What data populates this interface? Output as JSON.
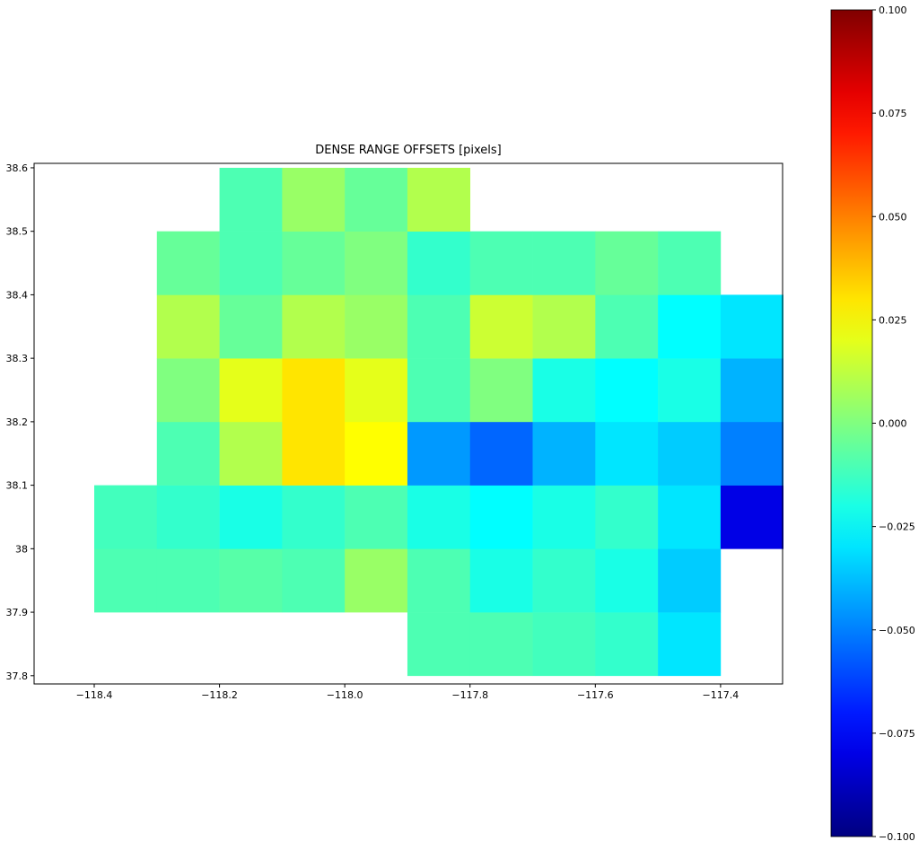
{
  "chart_data": {
    "type": "heatmap",
    "title": "DENSE RANGE OFFSETS [pixels]",
    "colormap": "jet",
    "xlim": [
      -118.496,
      -117.301
    ],
    "ylim": [
      37.787,
      38.607
    ],
    "xticks": [
      {
        "value": -118.4,
        "label": "−118.4"
      },
      {
        "value": -118.2,
        "label": "−118.2"
      },
      {
        "value": -118.0,
        "label": "−118.0"
      },
      {
        "value": -117.8,
        "label": "−117.8"
      },
      {
        "value": -117.6,
        "label": "−117.6"
      },
      {
        "value": -117.4,
        "label": "−117.4"
      }
    ],
    "yticks": [
      37.8,
      37.9,
      38.0,
      38.1,
      38.2,
      38.3,
      38.4,
      38.5,
      38.6
    ],
    "x_edges": [
      -118.4,
      -118.3,
      -118.2,
      -118.1,
      -118.0,
      -117.9,
      -117.8,
      -117.7,
      -117.6,
      -117.5,
      -117.4,
      -117.3
    ],
    "y_edges": [
      37.8,
      37.9,
      38.0,
      38.1,
      38.2,
      38.3,
      38.4,
      38.5,
      38.6
    ],
    "z": [
      [
        null,
        null,
        null,
        null,
        null,
        -0.01,
        -0.01,
        -0.012,
        -0.015,
        -0.03,
        null,
        null
      ],
      [
        -0.01,
        -0.01,
        -0.008,
        -0.01,
        0.005,
        -0.01,
        -0.02,
        -0.015,
        -0.02,
        -0.035,
        null,
        null
      ],
      [
        -0.012,
        -0.015,
        -0.02,
        -0.015,
        -0.01,
        -0.02,
        -0.025,
        -0.02,
        -0.015,
        -0.03,
        -0.08,
        null
      ],
      [
        null,
        -0.01,
        0.01,
        0.03,
        0.025,
        -0.045,
        -0.055,
        -0.04,
        -0.03,
        -0.035,
        -0.05,
        null
      ],
      [
        null,
        0.0,
        0.02,
        0.03,
        0.02,
        -0.01,
        0.0,
        -0.02,
        -0.025,
        -0.02,
        -0.04,
        null
      ],
      [
        null,
        0.01,
        -0.005,
        0.01,
        0.005,
        -0.01,
        0.015,
        0.01,
        -0.01,
        -0.025,
        -0.03,
        null
      ],
      [
        null,
        -0.005,
        -0.01,
        -0.005,
        0.0,
        -0.015,
        -0.01,
        -0.01,
        -0.005,
        -0.01,
        null,
        null
      ],
      [
        null,
        null,
        -0.01,
        0.005,
        -0.005,
        0.01,
        null,
        null,
        null,
        null,
        null,
        null
      ]
    ],
    "clim": [
      -0.1,
      0.1
    ],
    "cticks": [
      {
        "value": -0.1,
        "label": "−0.100"
      },
      {
        "value": -0.075,
        "label": "−0.075"
      },
      {
        "value": -0.05,
        "label": "−0.050"
      },
      {
        "value": -0.025,
        "label": "−0.025"
      },
      {
        "value": 0.0,
        "label": "0.000"
      },
      {
        "value": 0.025,
        "label": "0.025"
      },
      {
        "value": 0.05,
        "label": "0.050"
      },
      {
        "value": 0.075,
        "label": "0.075"
      },
      {
        "value": 0.1,
        "label": "0.100"
      }
    ]
  }
}
